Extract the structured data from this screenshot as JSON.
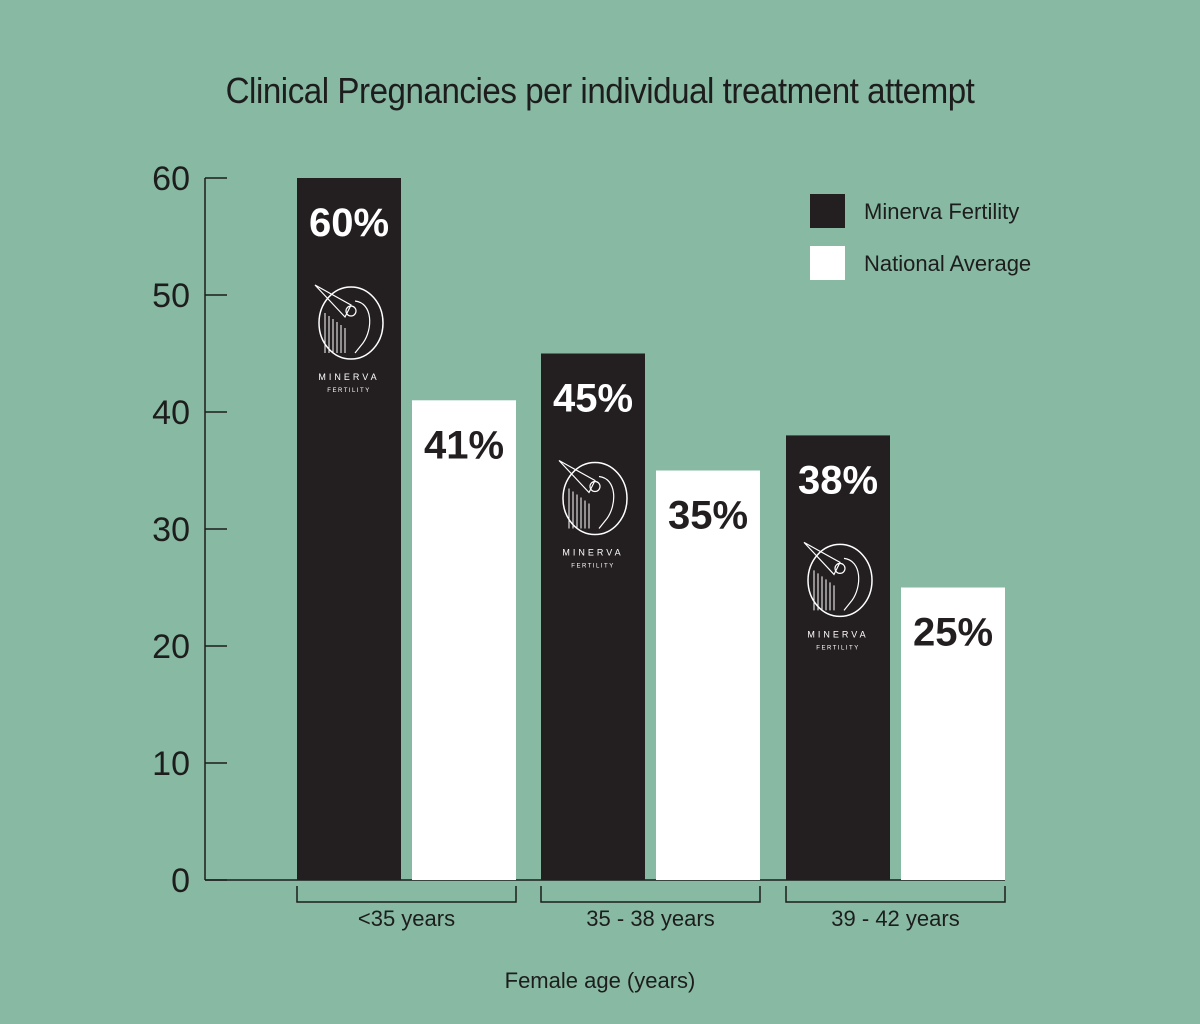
{
  "chart_data": {
    "type": "bar",
    "title": "Clinical Pregnancies per individual treatment attempt",
    "xlabel": "Female age (years)",
    "ylabel": "",
    "ylim": [
      0,
      60
    ],
    "yticks": [
      0,
      10,
      20,
      30,
      40,
      50,
      60
    ],
    "categories": [
      "<35 years",
      "35 - 38 years",
      "39 - 42 years"
    ],
    "series": [
      {
        "name": "Minerva Fertility",
        "values": [
          60,
          45,
          38
        ],
        "labels": [
          "60%",
          "45%",
          "38%"
        ],
        "color": "#231f20",
        "label_color": "#ffffff"
      },
      {
        "name": "National Average",
        "values": [
          41,
          35,
          25
        ],
        "labels": [
          "41%",
          "35%",
          "25%"
        ],
        "color": "#ffffff",
        "label_color": "#231f20"
      }
    ],
    "legend_position": "top-right",
    "grid": false,
    "background": "#87b9a3"
  },
  "logo": {
    "icon": "minerva-helmet-icon",
    "word1": "MINERVA",
    "word2": "FERTILITY"
  }
}
